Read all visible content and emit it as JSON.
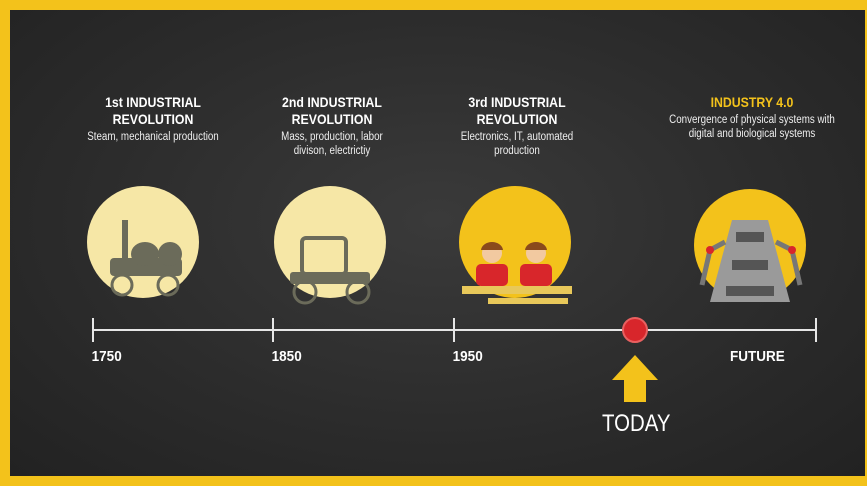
{
  "eras": [
    {
      "title": "1st INDUSTRIAL REVOLUTION",
      "description": "Steam, mechanical production",
      "label": "1750"
    },
    {
      "title": "2nd INDUSTRIAL REVOLUTION",
      "description": "Mass, production, labor divison, electrictiy",
      "label": "1850"
    },
    {
      "title": "3rd INDUSTRIAL REVOLUTION",
      "description": "Electronics, IT, automated production",
      "label": "1950"
    },
    {
      "title": "INDUSTRY 4.0",
      "description": "Convergence of physical systems with digital and biological systems",
      "label": "FUTURE"
    }
  ],
  "today": "TODAY"
}
